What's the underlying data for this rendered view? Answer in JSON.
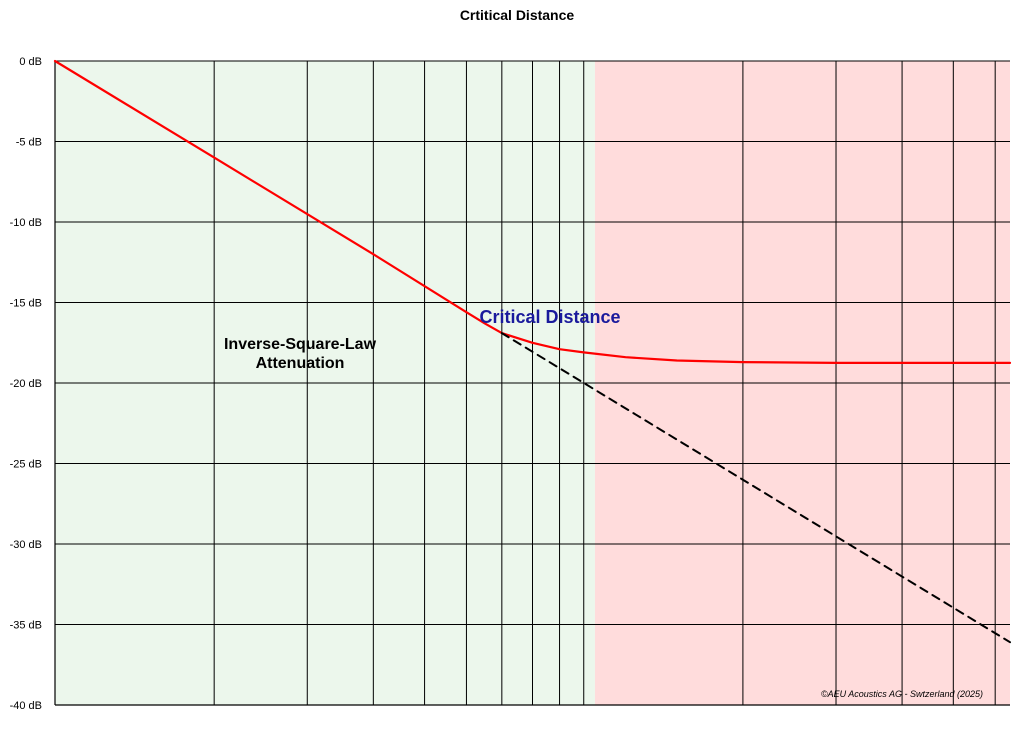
{
  "chart_data": {
    "type": "line",
    "title": "Crtitical Distance",
    "xlabel": "",
    "ylabel": "",
    "x_scale": "log",
    "x_domain": [
      1,
      64
    ],
    "ylim": [
      -40,
      0
    ],
    "y_ticks": [
      0,
      -5,
      -10,
      -15,
      -20,
      -25,
      -30,
      -35,
      -40
    ],
    "y_tick_labels": [
      "0 dB",
      "-5 dB",
      "-10 dB",
      "-15 dB",
      "-20 dB",
      "-25 dB",
      "-30 dB",
      "-35 dB",
      "-40 dB"
    ],
    "x_gridlines": [
      2,
      3,
      4,
      5,
      6,
      7,
      8,
      9,
      10,
      20,
      30,
      40,
      50,
      60
    ],
    "grid": true,
    "regions": [
      {
        "x_from": 1,
        "x_to": 10.5,
        "color": "#ecf7ec"
      },
      {
        "x_from": 10.5,
        "x_to": 64,
        "color": "#ffdcdc"
      }
    ],
    "series": [
      {
        "style": "solid",
        "color": "#ff0000",
        "x": [
          1,
          2,
          4,
          6,
          6.5,
          7,
          8,
          9,
          10,
          12,
          15,
          20,
          30,
          40,
          50,
          64
        ],
        "y": [
          0,
          -6.0,
          -12.0,
          -15.6,
          -16.3,
          -16.9,
          -17.5,
          -17.9,
          -18.1,
          -18.4,
          -18.6,
          -18.7,
          -18.75,
          -18.75,
          -18.75,
          -18.75
        ]
      },
      {
        "style": "dashed",
        "color": "#000000",
        "x": [
          7,
          64
        ],
        "y": [
          -16.9,
          -36.1
        ]
      }
    ],
    "annotations": [
      {
        "text_lines": [
          "Inverse-Square-Law",
          "Attenuation"
        ],
        "color": "#000000"
      },
      {
        "text_lines": [
          "Critical Distance"
        ],
        "color": "#1a1a9c"
      }
    ],
    "credit": "©AEU Acoustics AG - Swtzerland (2025)"
  }
}
